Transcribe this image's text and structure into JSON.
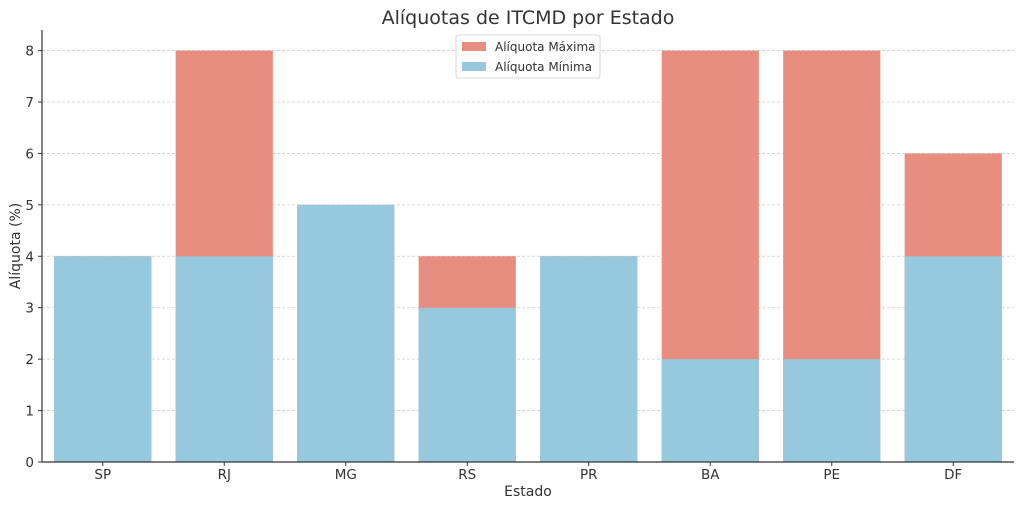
{
  "chart_data": {
    "type": "bar",
    "stacked_overlay": true,
    "title": "Alíquotas de ITCMD por Estado",
    "xlabel": "Estado",
    "ylabel": "Alíquota (%)",
    "categories": [
      "SP",
      "RJ",
      "MG",
      "RS",
      "PR",
      "BA",
      "PE",
      "DF"
    ],
    "ylim": [
      0,
      8.4
    ],
    "yticks": [
      0,
      1,
      2,
      3,
      4,
      5,
      6,
      7,
      8
    ],
    "grid": true,
    "legend_position": "top-center",
    "series": [
      {
        "name": "Alíquota Máxima",
        "color": "#e88e80",
        "values": [
          4,
          8,
          5,
          4,
          4,
          8,
          8,
          6
        ]
      },
      {
        "name": "Alíquota Mínima",
        "color": "#96c9dd",
        "values": [
          4,
          4,
          5,
          3,
          4,
          2,
          2,
          4
        ]
      }
    ]
  }
}
